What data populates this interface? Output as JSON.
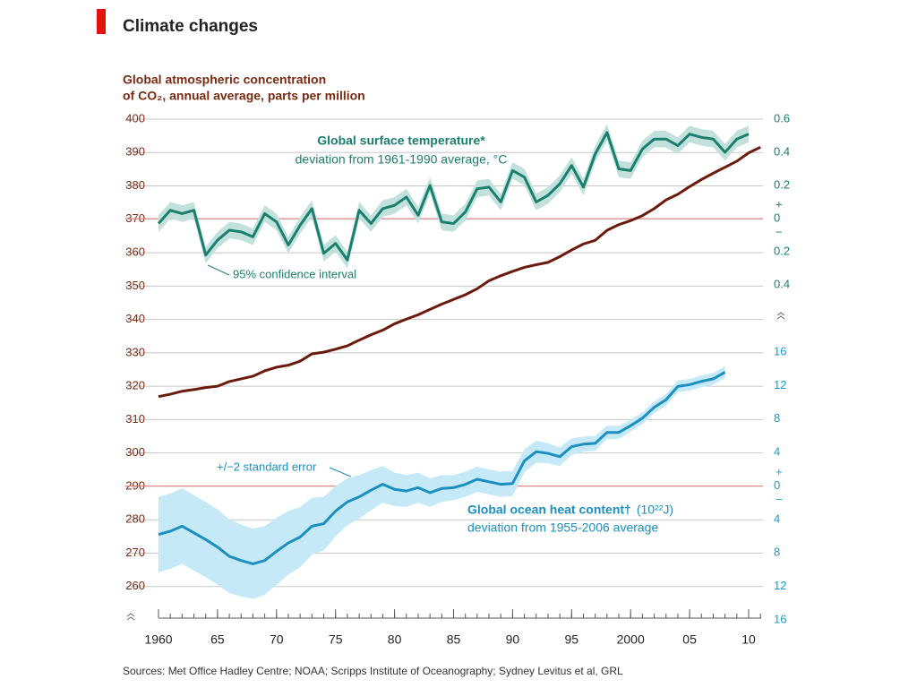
{
  "header": {
    "title": "Climate changes"
  },
  "chart_data": {
    "type": "line",
    "ylabel": [
      "Global atmospheric concentration",
      "of CO₂, annual average, parts per million"
    ],
    "source": "Sources: Met Office Hadley Centre; NOAA; Scripps Institute of Oceanography; Sydney Levitus et al, GRL",
    "xlim": [
      1960,
      2010
    ],
    "xticks": [
      {
        "value": 1960,
        "label": "1960"
      },
      {
        "value": 1965,
        "label": "65"
      },
      {
        "value": 1970,
        "label": "70"
      },
      {
        "value": 1975,
        "label": "75"
      },
      {
        "value": 1980,
        "label": "80"
      },
      {
        "value": 1985,
        "label": "85"
      },
      {
        "value": 1990,
        "label": "90"
      },
      {
        "value": 1995,
        "label": "95"
      },
      {
        "value": 2000,
        "label": "2000"
      },
      {
        "value": 2005,
        "label": "05"
      },
      {
        "value": 2010,
        "label": "10"
      }
    ],
    "ylim": [
      250,
      400
    ],
    "yticks": [
      260,
      270,
      280,
      290,
      300,
      310,
      320,
      330,
      340,
      350,
      360,
      370,
      380,
      390,
      400
    ],
    "y2lim": [
      -0.4,
      0.6
    ],
    "y2ticks": [
      {
        "value": -0.4,
        "label": "0.4"
      },
      {
        "value": -0.2,
        "label": "0.2"
      },
      0,
      0.2,
      0.4,
      0.6
    ],
    "y2_signs": [
      "+",
      "−"
    ],
    "y3lim": [
      -16,
      16
    ],
    "y3ticks": [
      {
        "value": -16,
        "label": "16"
      },
      {
        "value": -12,
        "label": "12"
      },
      {
        "value": -8,
        "label": "8"
      },
      {
        "value": -4,
        "label": "4"
      },
      0,
      4,
      8,
      12,
      16
    ],
    "y3_signs": [
      "+",
      "−"
    ],
    "grid": true,
    "zero_line_color": "#f08080",
    "series": [
      {
        "color": "#6b1a0c",
        "x": [
          1960,
          1961,
          1962,
          1963,
          1964,
          1965,
          1966,
          1967,
          1968,
          1969,
          1970,
          1971,
          1972,
          1973,
          1974,
          1975,
          1976,
          1977,
          1978,
          1979,
          1980,
          1981,
          1982,
          1983,
          1984,
          1985,
          1986,
          1987,
          1988,
          1989,
          1990,
          1991,
          1992,
          1993,
          1994,
          1995,
          1996,
          1997,
          1998,
          1999,
          2000,
          2001,
          2002,
          2003,
          2004,
          2005,
          2006,
          2007,
          2008,
          2009,
          2010,
          2011
        ],
        "values": [
          316.9,
          317.6,
          318.5,
          319.0,
          319.6,
          320.0,
          321.4,
          322.2,
          323.0,
          324.6,
          325.7,
          326.3,
          327.5,
          329.7,
          330.2,
          331.1,
          332.1,
          333.8,
          335.4,
          336.8,
          338.7,
          340.1,
          341.4,
          343.0,
          344.6,
          346.0,
          347.4,
          349.2,
          351.6,
          353.1,
          354.4,
          355.6,
          356.4,
          357.1,
          358.8,
          360.8,
          362.6,
          363.7,
          366.7,
          368.4,
          369.6,
          371.1,
          373.2,
          375.8,
          377.5,
          379.8,
          381.9,
          383.8,
          385.6,
          387.4,
          389.9,
          391.6
        ]
      },
      {
        "name": "Global surface temperature*",
        "subtitle": "deviation from 1961-1990 average, °C",
        "band_label": "95% confidence interval",
        "axis": "y2",
        "color": "#1a7f6e",
        "band_color": "#c2e1dd",
        "x": [
          1960,
          1961,
          1962,
          1963,
          1964,
          1965,
          1966,
          1967,
          1968,
          1969,
          1970,
          1971,
          1972,
          1973,
          1974,
          1975,
          1976,
          1977,
          1978,
          1979,
          1980,
          1981,
          1982,
          1983,
          1984,
          1985,
          1986,
          1987,
          1988,
          1989,
          1990,
          1991,
          1992,
          1993,
          1994,
          1995,
          1996,
          1997,
          1998,
          1999,
          2000,
          2001,
          2002,
          2003,
          2004,
          2005,
          2006,
          2007,
          2008,
          2009,
          2010
        ],
        "values": [
          -0.03,
          0.05,
          0.03,
          0.05,
          -0.22,
          -0.13,
          -0.07,
          -0.08,
          -0.11,
          0.03,
          -0.02,
          -0.16,
          -0.04,
          0.06,
          -0.21,
          -0.15,
          -0.25,
          0.05,
          -0.03,
          0.06,
          0.08,
          0.13,
          0.02,
          0.2,
          -0.02,
          -0.03,
          0.04,
          0.18,
          0.19,
          0.1,
          0.29,
          0.25,
          0.1,
          0.14,
          0.21,
          0.32,
          0.19,
          0.39,
          0.52,
          0.3,
          0.29,
          0.42,
          0.48,
          0.48,
          0.44,
          0.51,
          0.49,
          0.48,
          0.4,
          0.48,
          0.51
        ],
        "error": 0.05
      },
      {
        "name": "Global ocean heat content†",
        "unit": "(10²²J)",
        "subtitle": "deviation from 1955-2006 average",
        "band_label": "+/−2 standard error",
        "axis": "y3",
        "color": "#1a8fc0",
        "band_color": "#c6e9f8",
        "x": [
          1960,
          1961,
          1962,
          1963,
          1964,
          1965,
          1966,
          1967,
          1968,
          1969,
          1970,
          1971,
          1972,
          1973,
          1974,
          1975,
          1976,
          1977,
          1978,
          1979,
          1980,
          1981,
          1982,
          1983,
          1984,
          1985,
          1986,
          1987,
          1988,
          1989,
          1990,
          1991,
          1992,
          1993,
          1994,
          1995,
          1996,
          1997,
          1998,
          1999,
          2000,
          2001,
          2002,
          2003,
          2004,
          2005,
          2006,
          2007,
          2008
        ],
        "values": [
          -5.8,
          -5.4,
          -4.8,
          -5.6,
          -6.4,
          -7.3,
          -8.4,
          -8.9,
          -9.3,
          -8.9,
          -7.8,
          -6.8,
          -6.1,
          -4.8,
          -4.5,
          -3.0,
          -1.9,
          -1.3,
          -0.5,
          0.2,
          -0.4,
          -0.6,
          -0.2,
          -0.8,
          -0.3,
          -0.2,
          0.2,
          0.8,
          0.5,
          0.2,
          0.3,
          3.0,
          4.1,
          3.9,
          3.5,
          4.7,
          5.0,
          5.1,
          6.4,
          6.4,
          7.2,
          8.1,
          9.4,
          10.3,
          11.9,
          12.1,
          12.5,
          12.8,
          13.6
        ],
        "error": [
          4.5,
          4.5,
          4.5,
          4.5,
          4.5,
          4.5,
          4.4,
          4.3,
          4.2,
          4.1,
          4.0,
          3.8,
          3.6,
          3.4,
          3.2,
          3.0,
          2.8,
          2.6,
          2.4,
          2.2,
          2.0,
          1.9,
          1.8,
          1.7,
          1.6,
          1.5,
          1.5,
          1.5,
          1.5,
          1.5,
          1.5,
          1.4,
          1.3,
          1.2,
          1.1,
          1.0,
          0.9,
          0.9,
          0.8,
          0.8,
          0.7,
          0.7,
          0.7,
          0.7,
          0.7,
          0.7,
          0.7,
          0.7,
          0.7
        ]
      }
    ]
  }
}
